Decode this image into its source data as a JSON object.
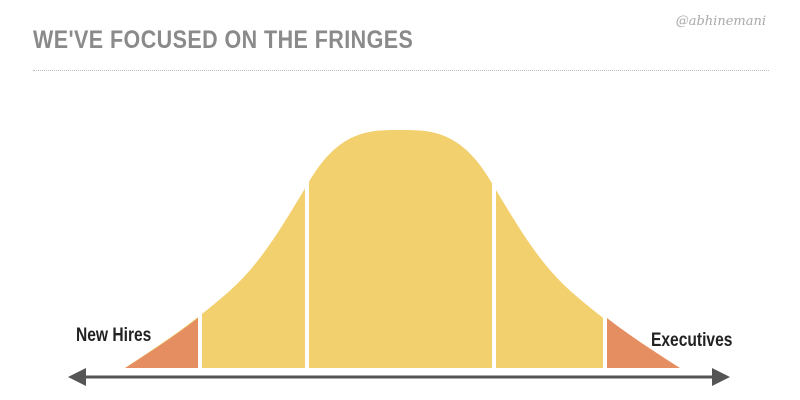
{
  "header": {
    "title": "WE'VE FOCUSED ON THE FRINGES",
    "handle": "@abhinemani"
  },
  "diagram": {
    "left_label": "New Hires",
    "right_label": "Executives",
    "colors": {
      "center": "#f2d06e",
      "tails": "#e58e61",
      "axis": "#555555",
      "title": "#8a8a8a"
    }
  }
}
